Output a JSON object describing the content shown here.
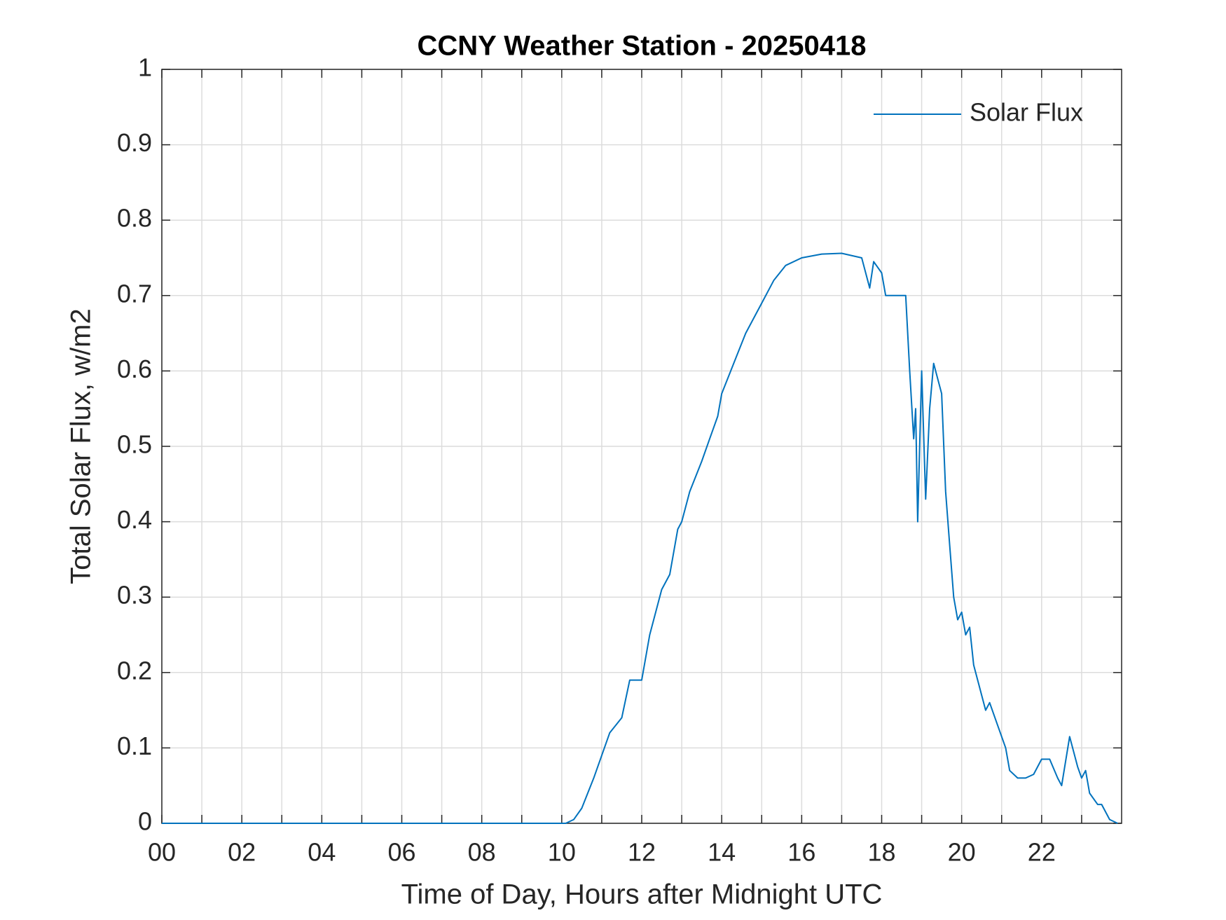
{
  "chart_data": {
    "type": "line",
    "title": "CCNY Weather Station - 20250418",
    "x_label": "Time of Day, Hours after Midnight UTC",
    "y_label": "Total Solar Flux, w/m2",
    "x": [
      0,
      10.1,
      10.3,
      10.5,
      10.8,
      11.0,
      11.2,
      11.5,
      11.7,
      12.0,
      12.2,
      12.5,
      12.7,
      12.9,
      13.0,
      13.2,
      13.5,
      13.7,
      13.9,
      14.0,
      14.3,
      14.6,
      15.0,
      15.3,
      15.6,
      16.0,
      16.5,
      17.0,
      17.5,
      17.7,
      17.8,
      18.0,
      18.1,
      18.4,
      18.6,
      18.7,
      18.8,
      18.85,
      18.9,
      19.0,
      19.1,
      19.2,
      19.3,
      19.4,
      19.5,
      19.6,
      19.7,
      19.8,
      19.9,
      20.0,
      20.1,
      20.2,
      20.3,
      20.5,
      20.6,
      20.7,
      20.9,
      21.1,
      21.2,
      21.4,
      21.6,
      21.8,
      22.0,
      22.2,
      22.4,
      22.5,
      22.7,
      22.9,
      23.0,
      23.1,
      23.2,
      23.4,
      23.5,
      23.7,
      23.9
    ],
    "series": [
      {
        "name": "Solar Flux",
        "color": "#0072bd",
        "values": [
          0,
          0,
          0.005,
          0.02,
          0.06,
          0.09,
          0.12,
          0.14,
          0.19,
          0.19,
          0.25,
          0.31,
          0.33,
          0.39,
          0.4,
          0.44,
          0.48,
          0.51,
          0.54,
          0.57,
          0.61,
          0.65,
          0.69,
          0.72,
          0.74,
          0.75,
          0.755,
          0.756,
          0.75,
          0.71,
          0.745,
          0.73,
          0.7,
          0.7,
          0.7,
          0.6,
          0.51,
          0.55,
          0.4,
          0.6,
          0.43,
          0.55,
          0.61,
          0.59,
          0.57,
          0.44,
          0.37,
          0.3,
          0.27,
          0.28,
          0.25,
          0.26,
          0.21,
          0.17,
          0.15,
          0.16,
          0.13,
          0.1,
          0.07,
          0.06,
          0.06,
          0.065,
          0.085,
          0.085,
          0.06,
          0.05,
          0.115,
          0.075,
          0.06,
          0.07,
          0.04,
          0.025,
          0.025,
          0.005,
          0
        ]
      }
    ],
    "xlim": [
      0,
      24
    ],
    "xticks": [
      {
        "value": 0,
        "label": "00"
      },
      {
        "value": 2,
        "label": "02"
      },
      {
        "value": 4,
        "label": "04"
      },
      {
        "value": 6,
        "label": "06"
      },
      {
        "value": 8,
        "label": "08"
      },
      10,
      12,
      14,
      16,
      18,
      20,
      22
    ],
    "x_minor_ticks": [
      1,
      3,
      5,
      7,
      9,
      11,
      13,
      15,
      17,
      19,
      21,
      23
    ],
    "ylim": [
      0,
      1
    ],
    "yticks": [
      0,
      0.1,
      0.2,
      0.3,
      0.4,
      0.5,
      0.6,
      0.7,
      0.8,
      0.9,
      1
    ],
    "grid": true,
    "legend": "top-right"
  }
}
